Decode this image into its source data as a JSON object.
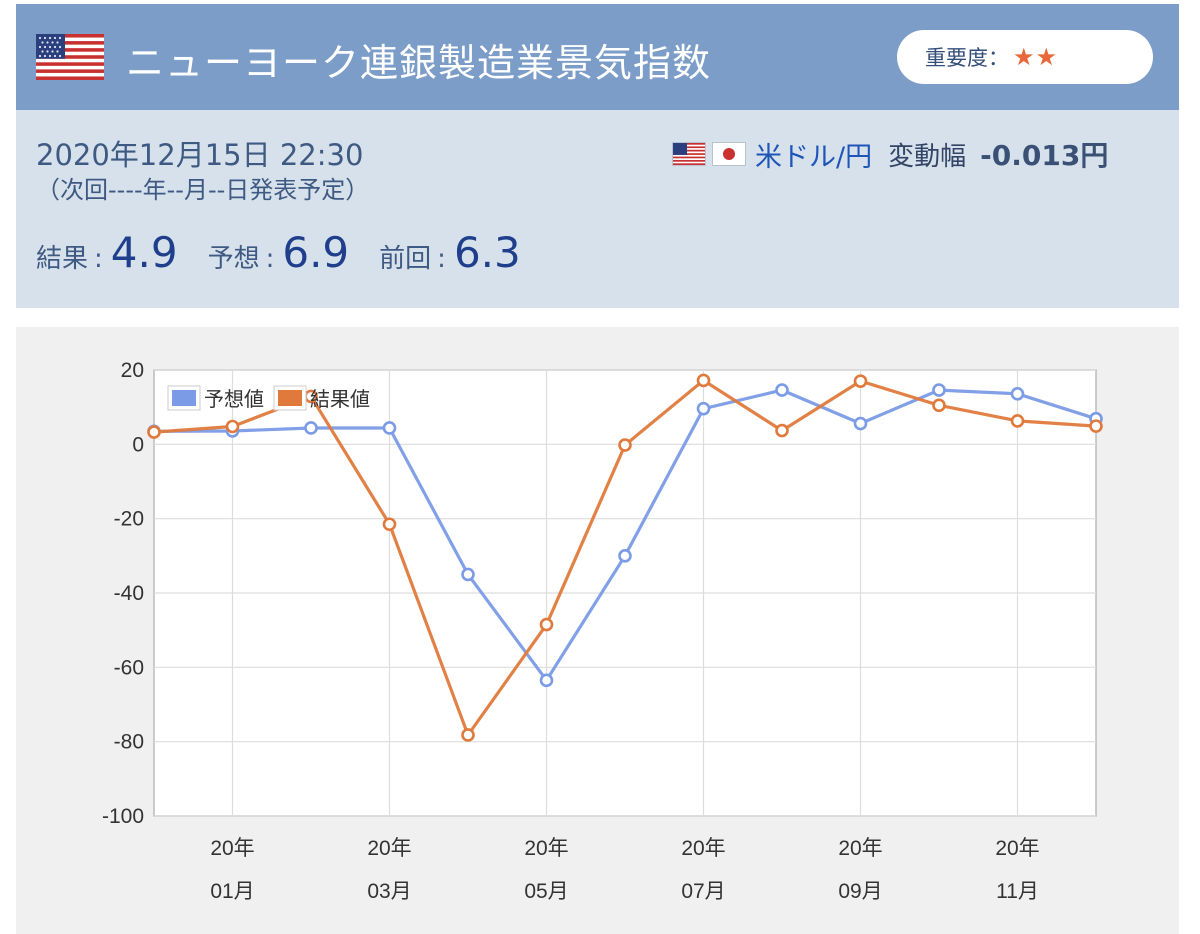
{
  "header": {
    "title": "ニューヨーク連銀製造業景気指数",
    "importance_label": "重要度：",
    "importance_stars": "★★"
  },
  "info": {
    "release_datetime": "2020年12月15日 22:30",
    "next_release": "（次回----年--月--日発表予定）",
    "pair_name": "米ドル/円",
    "range_label": "変動幅",
    "range_value": "-0.013円",
    "stats": {
      "result_label": "結果",
      "result_value": "4.9",
      "forecast_label": "予想",
      "forecast_value": "6.9",
      "previous_label": "前回",
      "previous_value": "6.3"
    }
  },
  "colors": {
    "header_bg": "#7b9dc7",
    "info_bg": "#d6e1ec",
    "forecast_line": "#7b9be6",
    "result_line": "#e07a3c"
  },
  "chart_data": {
    "type": "line",
    "x": [
      "2019-12",
      "2020-01",
      "2020-02",
      "2020-03",
      "2020-04",
      "2020-05",
      "2020-06",
      "2020-07",
      "2020-08",
      "2020-09",
      "2020-10",
      "2020-11",
      "2020-12"
    ],
    "x_tick_labels": [
      {
        "index": 1,
        "line1": "20年",
        "line2": "01月"
      },
      {
        "index": 3,
        "line1": "20年",
        "line2": "03月"
      },
      {
        "index": 5,
        "line1": "20年",
        "line2": "05月"
      },
      {
        "index": 7,
        "line1": "20年",
        "line2": "07月"
      },
      {
        "index": 9,
        "line1": "20年",
        "line2": "09月"
      },
      {
        "index": 11,
        "line1": "20年",
        "line2": "11月"
      }
    ],
    "y_ticks": [
      "20",
      "0",
      "-20",
      "-40",
      "-60",
      "-80",
      "-100"
    ],
    "ylim": [
      -100,
      20
    ],
    "grid": true,
    "legend_position": "top-left",
    "series": [
      {
        "name": "予想値",
        "color": "#7b9be6",
        "values": [
          3.5,
          3.6,
          4.4,
          4.4,
          -35,
          -63.5,
          -30,
          9.6,
          14.6,
          5.6,
          14.6,
          13.6,
          6.9
        ]
      },
      {
        "name": "結果値",
        "color": "#e07a3c",
        "values": [
          3.3,
          4.8,
          12.9,
          -21.5,
          -78.2,
          -48.5,
          -0.2,
          17.2,
          3.7,
          17.0,
          10.5,
          6.3,
          4.9
        ]
      }
    ]
  }
}
